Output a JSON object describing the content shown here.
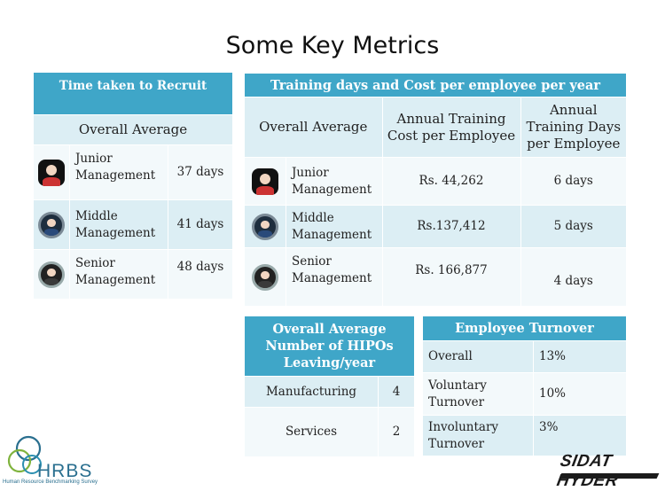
{
  "slide": {
    "title": "Some Key Metrics"
  },
  "recruit": {
    "header": "Time taken to Recruit",
    "overall": "Overall Average",
    "rows": [
      {
        "icon": "junior-manager-icon",
        "label": "Junior Management",
        "value": "37 days"
      },
      {
        "icon": "middle-manager-icon",
        "label": "Middle Management",
        "value": "41 days"
      },
      {
        "icon": "senior-manager-icon",
        "label": "Senior Management",
        "value": "48 days"
      }
    ]
  },
  "training": {
    "header": "Training days and Cost per employee per year",
    "overall": "Overall Average",
    "col_cost": "Annual Training Cost per  Employee",
    "col_days": "Annual Training Days per Employee",
    "rows": [
      {
        "icon": "junior-manager-icon",
        "label": "Junior Management",
        "cost": "Rs. 44,262",
        "days": "6 days"
      },
      {
        "icon": "middle-manager-icon",
        "label": "Middle Management",
        "cost": "Rs.137,412",
        "days": "5 days"
      },
      {
        "icon": "senior-manager-icon",
        "label": "Senior Management",
        "cost": "Rs. 166,877",
        "days": "4 days"
      }
    ]
  },
  "hipos": {
    "header": "Overall Average Number of HIPOs Leaving/year",
    "rows": [
      {
        "label": "Manufacturing",
        "value": "4"
      },
      {
        "label": "Services",
        "value": "2"
      }
    ]
  },
  "turnover": {
    "header": "Employee Turnover",
    "rows": [
      {
        "label": "Overall",
        "value": "13%"
      },
      {
        "label": "Voluntary Turnover",
        "value": "10%"
      },
      {
        "label": "Involuntary Turnover",
        "value": "3%"
      }
    ]
  },
  "logos": {
    "hrbs": "HRBS",
    "hrbs_sub": "Human Resource Benchmarking Survey",
    "sidat": "SIDAT HYDER"
  },
  "colors": {
    "header": "#3fa6c8",
    "row_light": "#dceef4",
    "row_white": "#f3f9fb"
  }
}
